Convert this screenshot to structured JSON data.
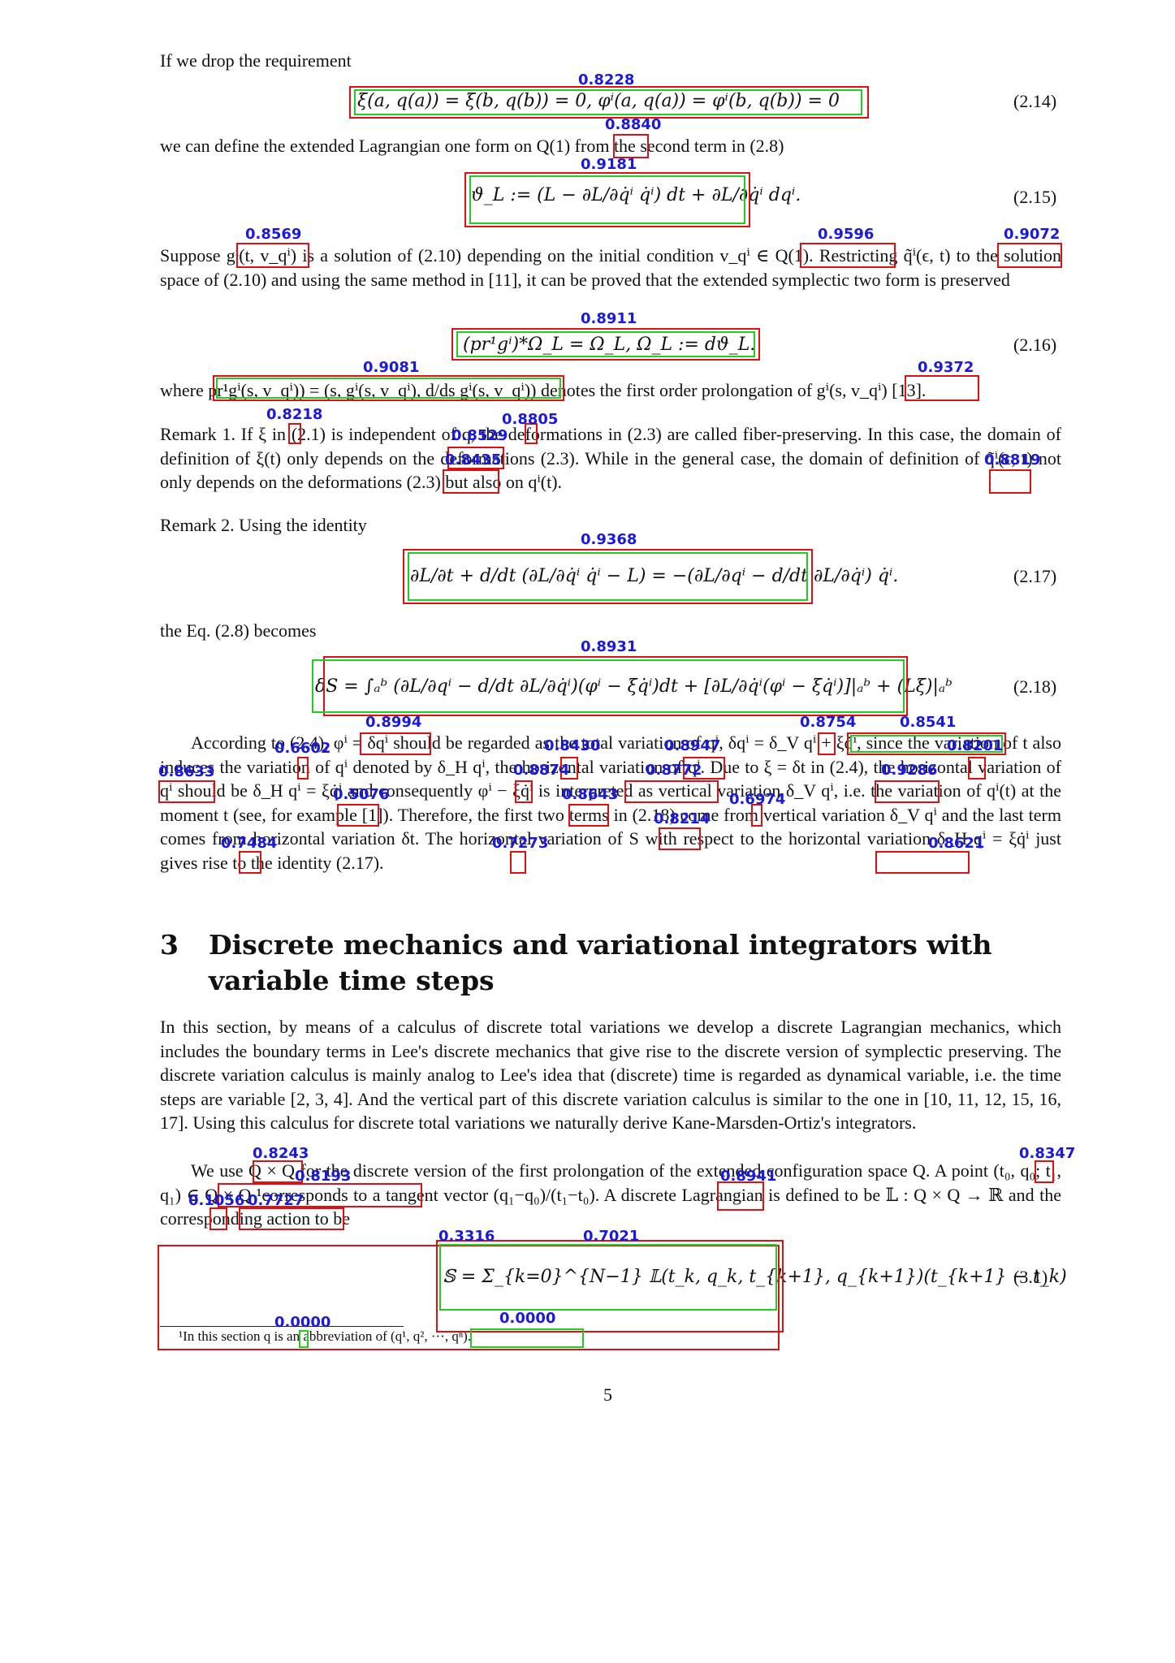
{
  "paragraphs": {
    "p1": "If we drop the requirement",
    "p2": "we can define the extended Lagrangian one form on Q(1) from the second term in (2.8)",
    "p3": "Suppose gⁱ(t, v_qⁱ) is a solution of (2.10) depending on the initial condition v_qⁱ ∈ Q(1). Restricting q̃ⁱ(ϵ, t) to the solution space of (2.10) and using the same method in [11], it can be proved that the extended symplectic two form is preserved",
    "p4": "where pr¹gⁱ(s, v_qⁱ)) = (s, gⁱ(s, v_qⁱ), d/ds gⁱ(s, v_qⁱ)) denotes the first order prolongation of gⁱ(s, v_qⁱ) [13].",
    "p5": "Remark 1.  If ξ in (2.1) is independent of q, the deformations in (2.3) are called fiber-preserving. In this case, the domain of definition of ξ(t) only depends on the deformations (2.3). While in the general case, the domain of definition of q̃ⁱ(ϵ, t) not only depends on the deformations (2.3) but also on qⁱ(t).",
    "p6": "Remark 2.  Using the identity",
    "p7": "the Eq. (2.8) becomes",
    "p8": "According to (2.4), φⁱ = δqⁱ should be regarded as the total variation of qⁱ, δqⁱ = δ_V qⁱ + ξq̇ⁱ, since the variation of t also induces the variation of qⁱ denoted by δ_H qⁱ, the horizontal variation of qⁱ. Due to ξ = δt in (2.4), the horizontal variation of qⁱ should be δ_H qⁱ = ξq̇ⁱ and consequently φⁱ − ξq̇ⁱ is interpreted as vertical variation δ_V qⁱ, i.e. the variation of qⁱ(t) at the moment t (see, for example [1]). Therefore, the first two terms in (2.18) come from vertical variation δ_V qⁱ and the last term comes from horizontal variation δt. The horizontal variation of S with respect to the horizontal variation δ_H qⁱ = ξq̇ⁱ just gives rise to the identity (2.17).",
    "p9": "In this section, by means of a calculus of discrete total variations we develop a discrete Lagrangian mechanics, which includes the boundary terms in Lee's discrete mechanics that give rise to the discrete version of symplectic preserving. The discrete variation calculus is mainly analog to Lee's idea that (discrete) time is regarded as dynamical variable, i.e. the time steps are variable [2, 3, 4]. And the vertical part of this discrete variation calculus is similar to the one in [10, 11, 12, 15, 16, 17]. Using this calculus for discrete total variations we naturally derive Kane-Marsden-Ortiz's integrators.",
    "p10": "We use Q × Q for the discrete version of the first prolongation of the extended configuration space Q. A point (t₀, q₀; t₁, q₁) ∈ Q × Q ¹corresponds to a tangent vector (q₁−q₀)/(t₁−t₀). A discrete Lagrangian is defined to be 𝕃 : Q × Q → ℝ and the corresponding action to be"
  },
  "equations": {
    "e214": "ξ(a, q(a)) = ξ(b, q(b)) = 0,        φⁱ(a, q(a)) = φⁱ(b, q(b)) = 0",
    "e215": "ϑ_L := (L − ∂L/∂q̇ⁱ q̇ⁱ) dt + ∂L/∂q̇ⁱ dqⁱ.",
    "e216": "(pr¹gⁱ)*Ω_L = Ω_L,        Ω_L := dϑ_L.",
    "e217": "∂L/∂t + d/dt (∂L/∂q̇ⁱ q̇ⁱ − L) = −(∂L/∂qⁱ − d/dt ∂L/∂q̇ⁱ) q̇ⁱ.",
    "e218": "δS = ∫ₐᵇ (∂L/∂qⁱ − d/dt ∂L/∂q̇ⁱ)(φⁱ − ξq̇ⁱ)dt + [∂L/∂q̇ⁱ(φⁱ − ξq̇ⁱ)]|ₐᵇ + (Lξ)|ₐᵇ",
    "e31": "𝕊 = Σ_{k=0}^{N−1} 𝕃(t_k, q_k, t_{k+1}, q_{k+1})(t_{k+1} − t_k)"
  },
  "eqnos": [
    "(2.14)",
    "(2.15)",
    "(2.16)",
    "(2.17)",
    "(2.18)",
    "(3.1)"
  ],
  "section": {
    "number": "3",
    "title": "Discrete mechanics and variational integrators with variable time steps"
  },
  "footnote": "¹In this section q is an abbreviation of (q¹, q², ···, qⁿ).",
  "page_number": "5",
  "scores": [
    "0.8228",
    "0.8840",
    "0.9181",
    "0.8569",
    "0.9596",
    "0.9072",
    "0.8911",
    "0.9081",
    "0.9372",
    "0.8218",
    "0.8805",
    "0.8529",
    "0.8435",
    "0.8819",
    "0.9368",
    "0.8931",
    "0.8994",
    "0.8754",
    "0.8541",
    "0.6602",
    "0.8430",
    "0.8947",
    "0.8201",
    "0.8633",
    "0.8874",
    "0.8772",
    "0.9286",
    "0.5076",
    "0.8643",
    "0.6974",
    "0.8214",
    "0.7484",
    "0.7273",
    "0.8621",
    "0.8243",
    "0.8193",
    "0.8941",
    "0.8347",
    "0.1056",
    "0.7727",
    "0.3316",
    "0.7021",
    "0.0000",
    "0.0000"
  ],
  "colors": {
    "pred_box": "#dd1111",
    "gt_box": "#22cc22",
    "score_text": "#1a1ad8"
  }
}
